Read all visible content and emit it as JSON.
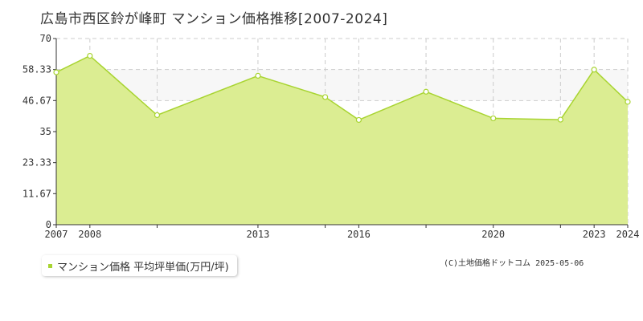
{
  "chart_data": {
    "type": "area",
    "title": "広島市西区鈴が峰町 マンション価格推移[2007-2024]",
    "x": [
      2007,
      2008,
      2010,
      2013,
      2015,
      2016,
      2018,
      2020,
      2022,
      2023,
      2024
    ],
    "xlim": [
      2007,
      2024
    ],
    "x_tick_labels": [
      "2007",
      "2008",
      "2013",
      "2016",
      "2020",
      "2023",
      "2024"
    ],
    "series": [
      {
        "name": "マンション価格 平均坪単価(万円/坪)",
        "values": [
          57.3,
          63.5,
          41.2,
          56.0,
          48.0,
          39.4,
          50.0,
          40.0,
          39.5,
          58.3,
          46.2
        ],
        "color": "#a8d431",
        "fill": "#dbed92"
      }
    ],
    "y_ticks": [
      "0",
      "11.67",
      "23.33",
      "35",
      "46.67",
      "58.33",
      "70"
    ],
    "ylim": [
      0,
      70
    ],
    "band": [
      46.67,
      58.33
    ],
    "grid": true
  },
  "legend_label": "マンション価格 平均坪単価(万円/坪)",
  "copyright": "(C)土地価格ドットコム 2025-05-06",
  "colors": {
    "background": "#ffffff",
    "grid": "#cccccc",
    "axis": "#333333"
  }
}
